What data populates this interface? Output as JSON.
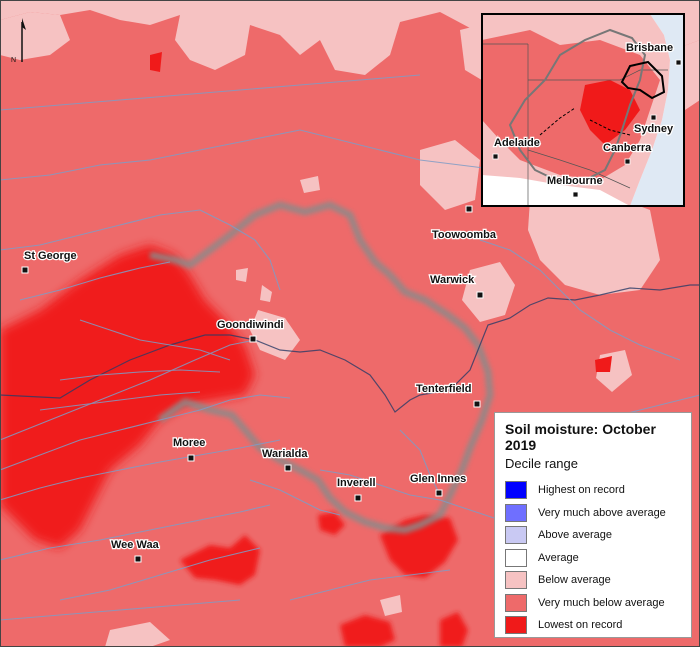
{
  "legend": {
    "title": "Soil moisture: October 2019",
    "subtitle": "Decile range",
    "items": [
      {
        "label": "Highest on record",
        "color": "#0000ff"
      },
      {
        "label": "Very much above average",
        "color": "#6f6fff"
      },
      {
        "label": "Above average",
        "color": "#c9c9f3"
      },
      {
        "label": "Average",
        "color": "#ffffff"
      },
      {
        "label": "Below average",
        "color": "#f6c2c2"
      },
      {
        "label": "Very much below average",
        "color": "#ee6a6a"
      },
      {
        "label": "Lowest on record",
        "color": "#f01a1a"
      }
    ]
  },
  "north_arrow": {
    "label": "N"
  },
  "towns": [
    {
      "id": "toowoomba",
      "name": "Toowoomba"
    },
    {
      "id": "st-george",
      "name": "St George"
    },
    {
      "id": "warwick",
      "name": "Warwick"
    },
    {
      "id": "goondiwindi",
      "name": "Goondiwindi"
    },
    {
      "id": "tenterfield",
      "name": "Tenterfield"
    },
    {
      "id": "moree",
      "name": "Moree"
    },
    {
      "id": "warialda",
      "name": "Warialda"
    },
    {
      "id": "inverell",
      "name": "Inverell"
    },
    {
      "id": "glen-innes",
      "name": "Glen Innes"
    },
    {
      "id": "wee-waa",
      "name": "Wee Waa"
    }
  ],
  "inset": {
    "cities": [
      {
        "id": "brisbane",
        "name": "Brisbane"
      },
      {
        "id": "sydney",
        "name": "Sydney"
      },
      {
        "id": "adelaide",
        "name": "Adelaide"
      },
      {
        "id": "canberra",
        "name": "Canberra"
      },
      {
        "id": "melbourne",
        "name": "Melbourne"
      }
    ]
  },
  "colors": {
    "very_much_below": "#ee6a6a",
    "below": "#f6c2c2",
    "lowest": "#f01a1a",
    "river": "#7f9cc6",
    "basin_outline": "#8a8a8a"
  }
}
